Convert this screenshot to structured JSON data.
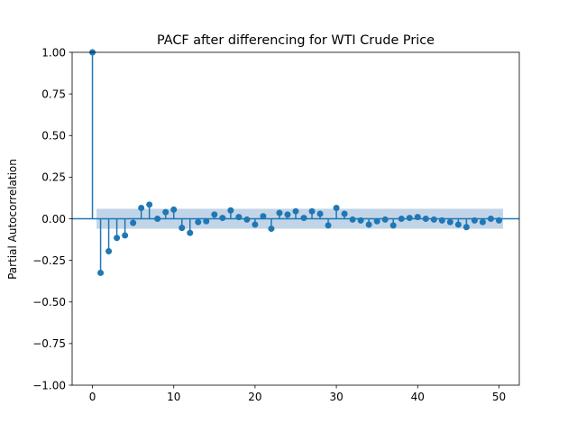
{
  "chart_data": {
    "type": "stem",
    "title": "PACF after differencing for WTI Crude Price",
    "xlabel": "",
    "ylabel": "Partial Autocorrelation",
    "xlim": [
      -2.5,
      52.5
    ],
    "ylim": [
      -1.0,
      1.0
    ],
    "x_ticks": [
      0,
      10,
      20,
      30,
      40,
      50
    ],
    "x_tick_labels": [
      "0",
      "10",
      "20",
      "30",
      "40",
      "50"
    ],
    "y_ticks": [
      1.0,
      0.75,
      0.5,
      0.25,
      0.0,
      -0.25,
      -0.5,
      -0.75,
      -1.0
    ],
    "y_tick_labels": [
      "1.00",
      "0.75",
      "0.50",
      "0.25",
      "0.00",
      "−0.25",
      "−0.50",
      "−0.75",
      "−1.00"
    ],
    "confidence_band": [
      0.06,
      -0.06
    ],
    "lags": [
      0,
      1,
      2,
      3,
      4,
      5,
      6,
      7,
      8,
      9,
      10,
      11,
      12,
      13,
      14,
      15,
      16,
      17,
      18,
      19,
      20,
      21,
      22,
      23,
      24,
      25,
      26,
      27,
      28,
      29,
      30,
      31,
      32,
      33,
      34,
      35,
      36,
      37,
      38,
      39,
      40,
      41,
      42,
      43,
      44,
      45,
      46,
      47,
      48,
      49,
      50
    ],
    "values": [
      1.0,
      -0.325,
      -0.195,
      -0.115,
      -0.1,
      -0.025,
      0.065,
      0.085,
      0.0,
      0.04,
      0.055,
      -0.055,
      -0.085,
      -0.02,
      -0.015,
      0.025,
      0.005,
      0.05,
      0.01,
      -0.005,
      -0.035,
      0.015,
      -0.06,
      0.035,
      0.025,
      0.045,
      0.005,
      0.045,
      0.03,
      -0.04,
      0.065,
      0.03,
      -0.005,
      -0.01,
      -0.035,
      -0.015,
      -0.005,
      -0.04,
      0.0,
      0.005,
      0.01,
      0.0,
      -0.005,
      -0.01,
      -0.02,
      -0.035,
      -0.05,
      -0.01,
      -0.02,
      0.0,
      -0.01
    ],
    "grid": false,
    "colors": {
      "stem": "#1f77b4",
      "band": "#aec7e0",
      "zero_line": "#1f77b4"
    }
  }
}
